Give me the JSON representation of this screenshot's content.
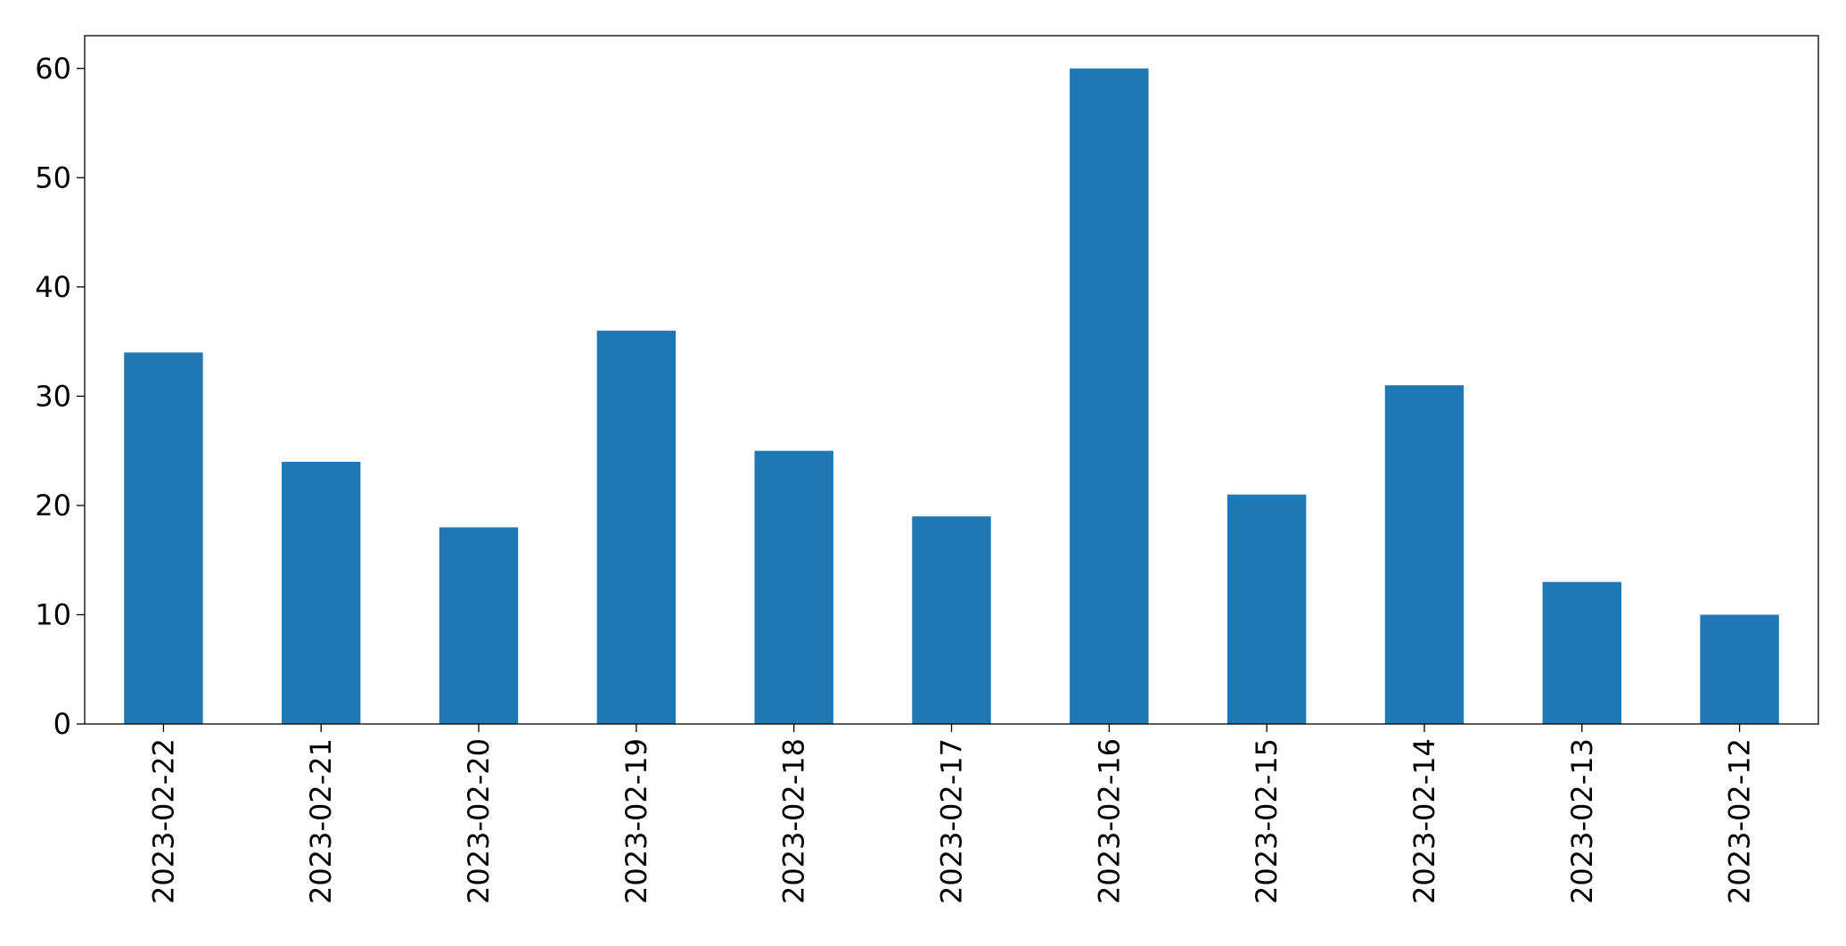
{
  "chart_data": {
    "type": "bar",
    "title": "",
    "xlabel": "",
    "ylabel": "",
    "categories": [
      "2023-02-22",
      "2023-02-21",
      "2023-02-20",
      "2023-02-19",
      "2023-02-18",
      "2023-02-17",
      "2023-02-16",
      "2023-02-15",
      "2023-02-14",
      "2023-02-13",
      "2023-02-12"
    ],
    "values": [
      34,
      24,
      18,
      36,
      25,
      19,
      60,
      21,
      31,
      13,
      10
    ],
    "ylim": [
      0,
      63
    ],
    "yticks": [
      0,
      10,
      20,
      30,
      40,
      50,
      60
    ],
    "grid": false,
    "legend": "none",
    "bar_color": "#1f77b4",
    "x_tick_rotation": "vertical"
  }
}
